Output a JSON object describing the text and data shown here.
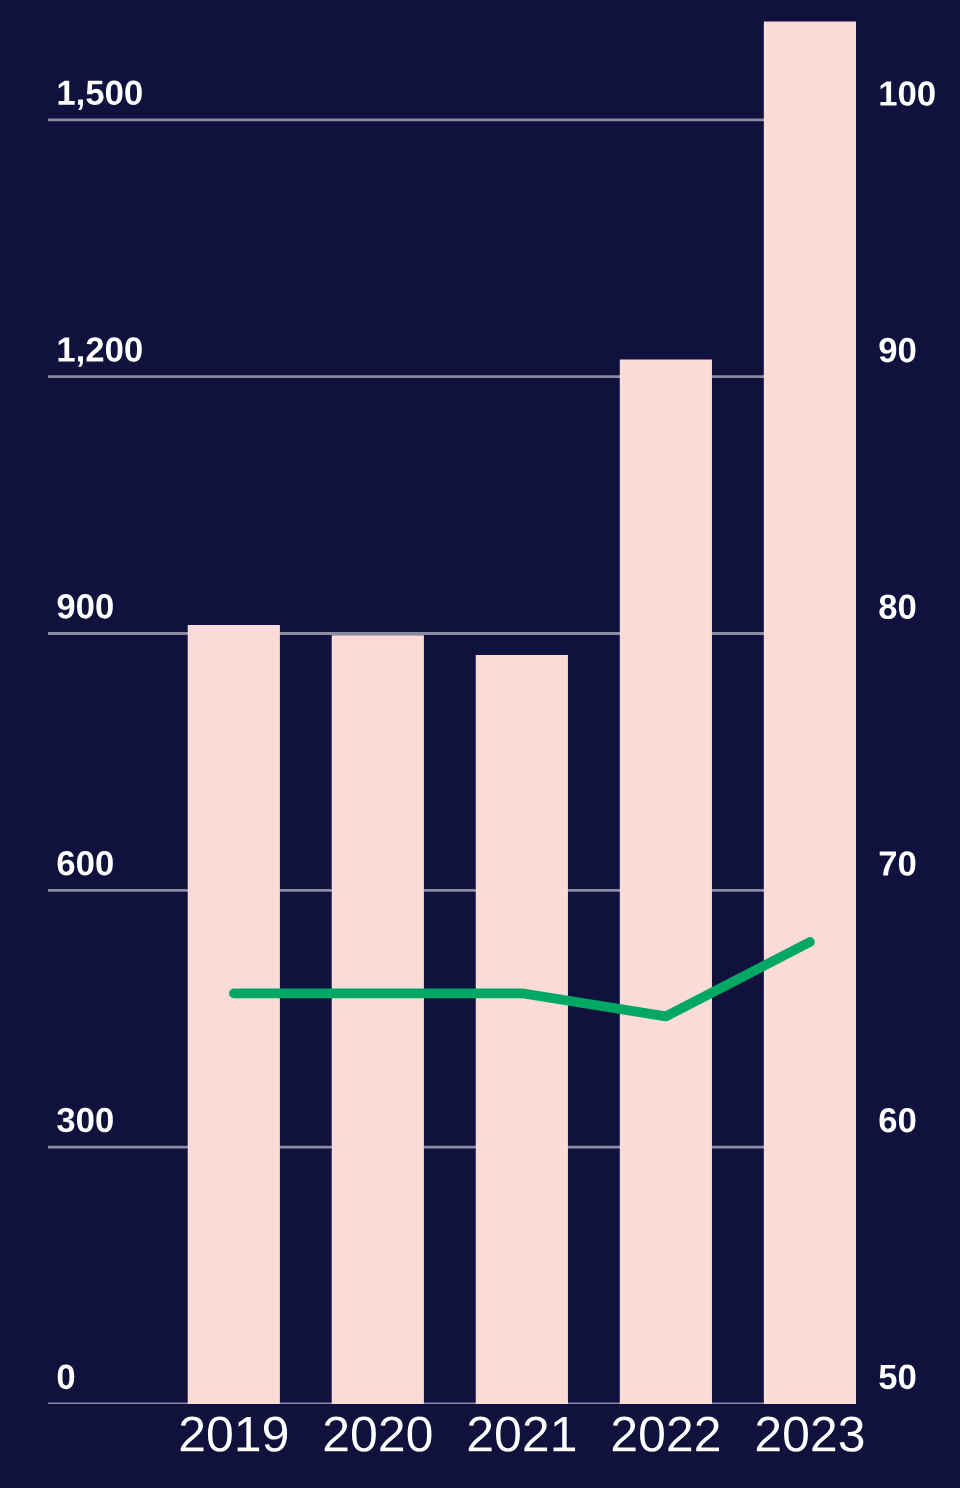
{
  "chart_data": {
    "type": "bar",
    "categories": [
      "2019",
      "2020",
      "2021",
      "2022",
      "2023"
    ],
    "series": [
      {
        "color": "#fadbd8",
        "values": [
          910,
          898,
          875,
          1220,
          1615
        ]
      },
      {
        "type": "line",
        "axis": "y2",
        "color": "#00a864",
        "values": [
          66.0,
          66.0,
          66.0,
          65.1,
          68.0
        ]
      }
    ],
    "ylim": [
      0,
      1640
    ],
    "yticks": [
      0,
      {
        "value": 300,
        "label": "300"
      },
      {
        "value": 600,
        "label": "600"
      },
      {
        "value": 900,
        "label": "900"
      },
      {
        "value": 1200,
        "label": "1,200"
      },
      {
        "value": 1500,
        "label": "1,500"
      }
    ],
    "y2lim": [
      50,
      104.7
    ],
    "y2ticks": [
      50,
      60,
      70,
      80,
      90,
      100
    ],
    "grid": "y",
    "marker": "none",
    "line_style": "solid",
    "legend": false
  }
}
